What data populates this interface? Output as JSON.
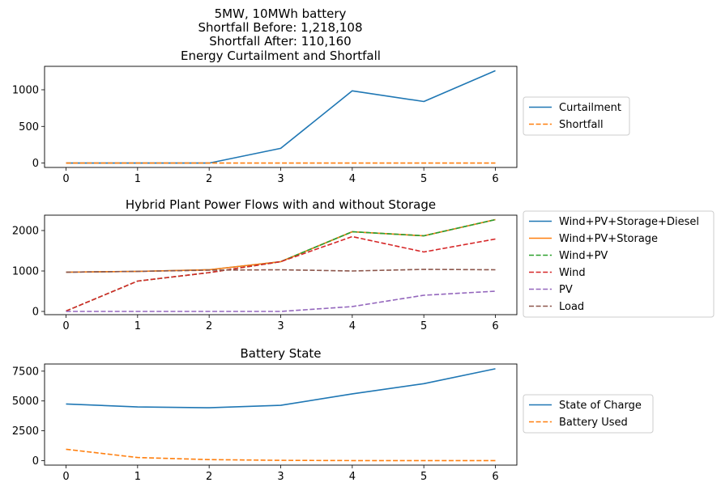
{
  "figure_title": [
    "5MW, 10MWh battery",
    "Shortfall Before: 1,218,108",
    "Shortfall After: 110,160"
  ],
  "chart_data": [
    {
      "type": "line",
      "title": "Energy Curtailment and Shortfall",
      "xlabel": "",
      "ylabel": "",
      "x": [
        0,
        1,
        2,
        3,
        4,
        5,
        6
      ],
      "xlim": [
        -0.3,
        6.3
      ],
      "ylim": [
        -60,
        1320
      ],
      "yticks": [
        0,
        500,
        1000
      ],
      "legend_position": "right",
      "grid": false,
      "series": [
        {
          "name": "Curtailment",
          "values": [
            0,
            0,
            0,
            200,
            985,
            840,
            1260
          ],
          "color": "#1f77b4",
          "dash": "solid"
        },
        {
          "name": "Shortfall",
          "values": [
            0,
            0,
            0,
            0,
            0,
            0,
            0
          ],
          "color": "#ff7f0e",
          "dash": "dashed"
        }
      ]
    },
    {
      "type": "line",
      "title": "Hybrid Plant Power Flows with and without Storage",
      "xlabel": "",
      "ylabel": "",
      "x": [
        0,
        1,
        2,
        3,
        4,
        5,
        6
      ],
      "xlim": [
        -0.3,
        6.3
      ],
      "ylim": [
        -80,
        2380
      ],
      "yticks": [
        0,
        1000,
        2000
      ],
      "legend_position": "right",
      "grid": false,
      "series": [
        {
          "name": "Wind+PV+Storage+Diesel",
          "values": [
            970,
            990,
            1030,
            1230,
            1970,
            1870,
            2270
          ],
          "color": "#1f77b4",
          "dash": "solid"
        },
        {
          "name": "Wind+PV+Storage",
          "values": [
            970,
            990,
            1030,
            1230,
            1970,
            1870,
            2270
          ],
          "color": "#ff7f0e",
          "dash": "solid"
        },
        {
          "name": "Wind+PV",
          "values": [
            10,
            750,
            960,
            1230,
            1970,
            1870,
            2270
          ],
          "color": "#2ca02c",
          "dash": "dashed"
        },
        {
          "name": "Wind",
          "values": [
            10,
            750,
            960,
            1230,
            1850,
            1470,
            1790
          ],
          "color": "#d62728",
          "dash": "dashed"
        },
        {
          "name": "PV",
          "values": [
            0,
            0,
            0,
            0,
            120,
            400,
            500
          ],
          "color": "#9467bd",
          "dash": "dashed"
        },
        {
          "name": "Load",
          "values": [
            970,
            990,
            1020,
            1030,
            1000,
            1040,
            1030
          ],
          "color": "#8c564b",
          "dash": "dashed"
        }
      ]
    },
    {
      "type": "line",
      "title": "Battery State",
      "xlabel": "",
      "ylabel": "",
      "x": [
        0,
        1,
        2,
        3,
        4,
        5,
        6
      ],
      "xlim": [
        -0.3,
        6.3
      ],
      "ylim": [
        -380,
        8100
      ],
      "yticks": [
        0,
        2500,
        5000,
        7500
      ],
      "legend_position": "right",
      "grid": false,
      "series": [
        {
          "name": "State of Charge",
          "values": [
            4750,
            4500,
            4430,
            4630,
            5600,
            6450,
            7700
          ],
          "color": "#1f77b4",
          "dash": "solid"
        },
        {
          "name": "Battery Used",
          "values": [
            950,
            260,
            80,
            20,
            0,
            0,
            0
          ],
          "color": "#ff7f0e",
          "dash": "dashed"
        }
      ]
    }
  ]
}
